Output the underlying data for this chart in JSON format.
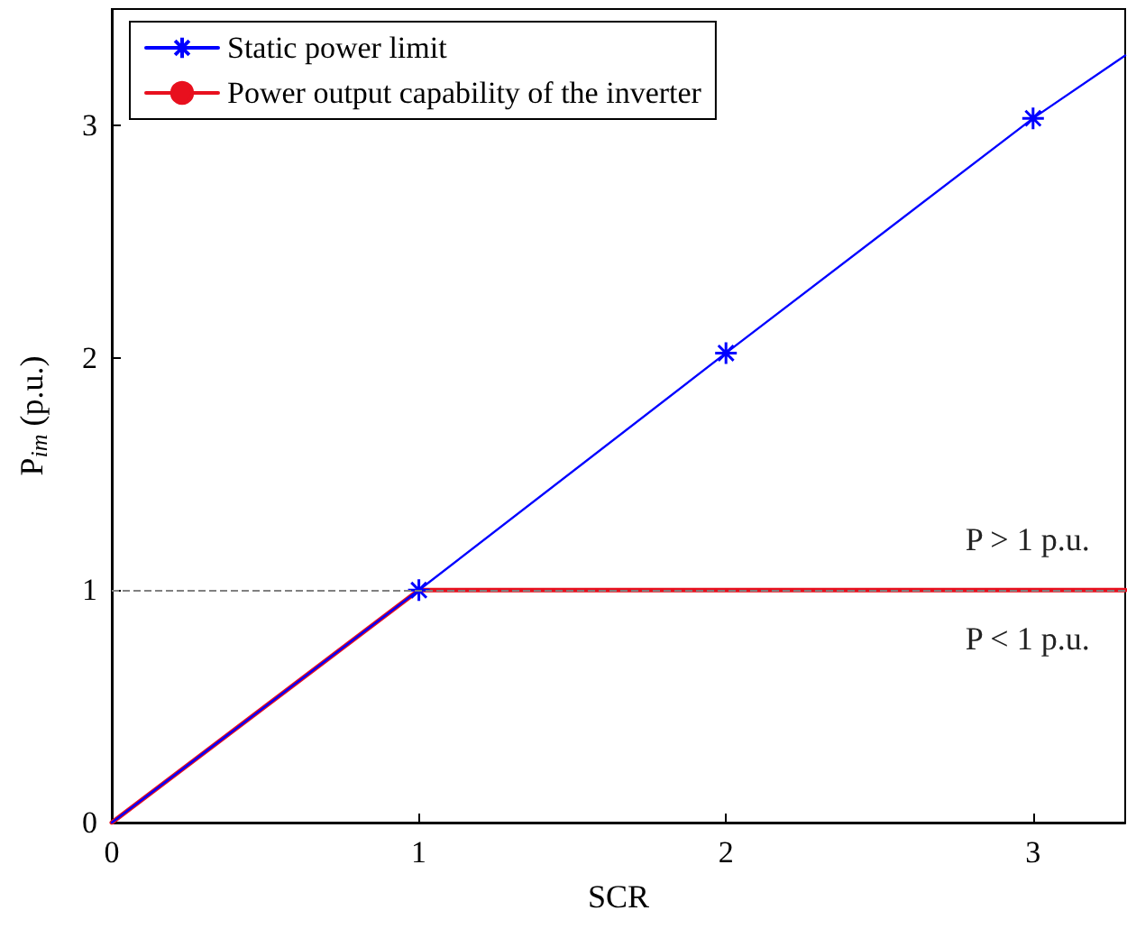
{
  "chart_data": {
    "type": "line",
    "xlabel": "SCR",
    "ylabel": "P$_{im}$ (p.u.)",
    "series": [
      {
        "name": "Static power limit",
        "color": "#0000ff",
        "x": [
          0,
          1,
          2,
          3,
          3.3
        ],
        "values": [
          0,
          1,
          2.02,
          3.03,
          3.3
        ],
        "marker": "cross"
      },
      {
        "name": "Power output capability of the inverter",
        "color": "#e8101e",
        "x": [
          0,
          1,
          3.3
        ],
        "values": [
          0,
          1,
          1
        ],
        "marker": "none"
      }
    ],
    "xlim": [
      0,
      3.3
    ],
    "ylim": [
      0,
      3.5
    ],
    "xticks": [
      0,
      1,
      2,
      3
    ],
    "yticks": [
      0,
      1,
      2,
      3
    ],
    "ref_lines": [
      {
        "axis": "y",
        "value": 1,
        "color": "#808080",
        "line_style": "dashed"
      }
    ],
    "annotations": [
      "P > 1 p.u.",
      "P < 1 p.u."
    ],
    "legend": "top left",
    "grid": false
  }
}
